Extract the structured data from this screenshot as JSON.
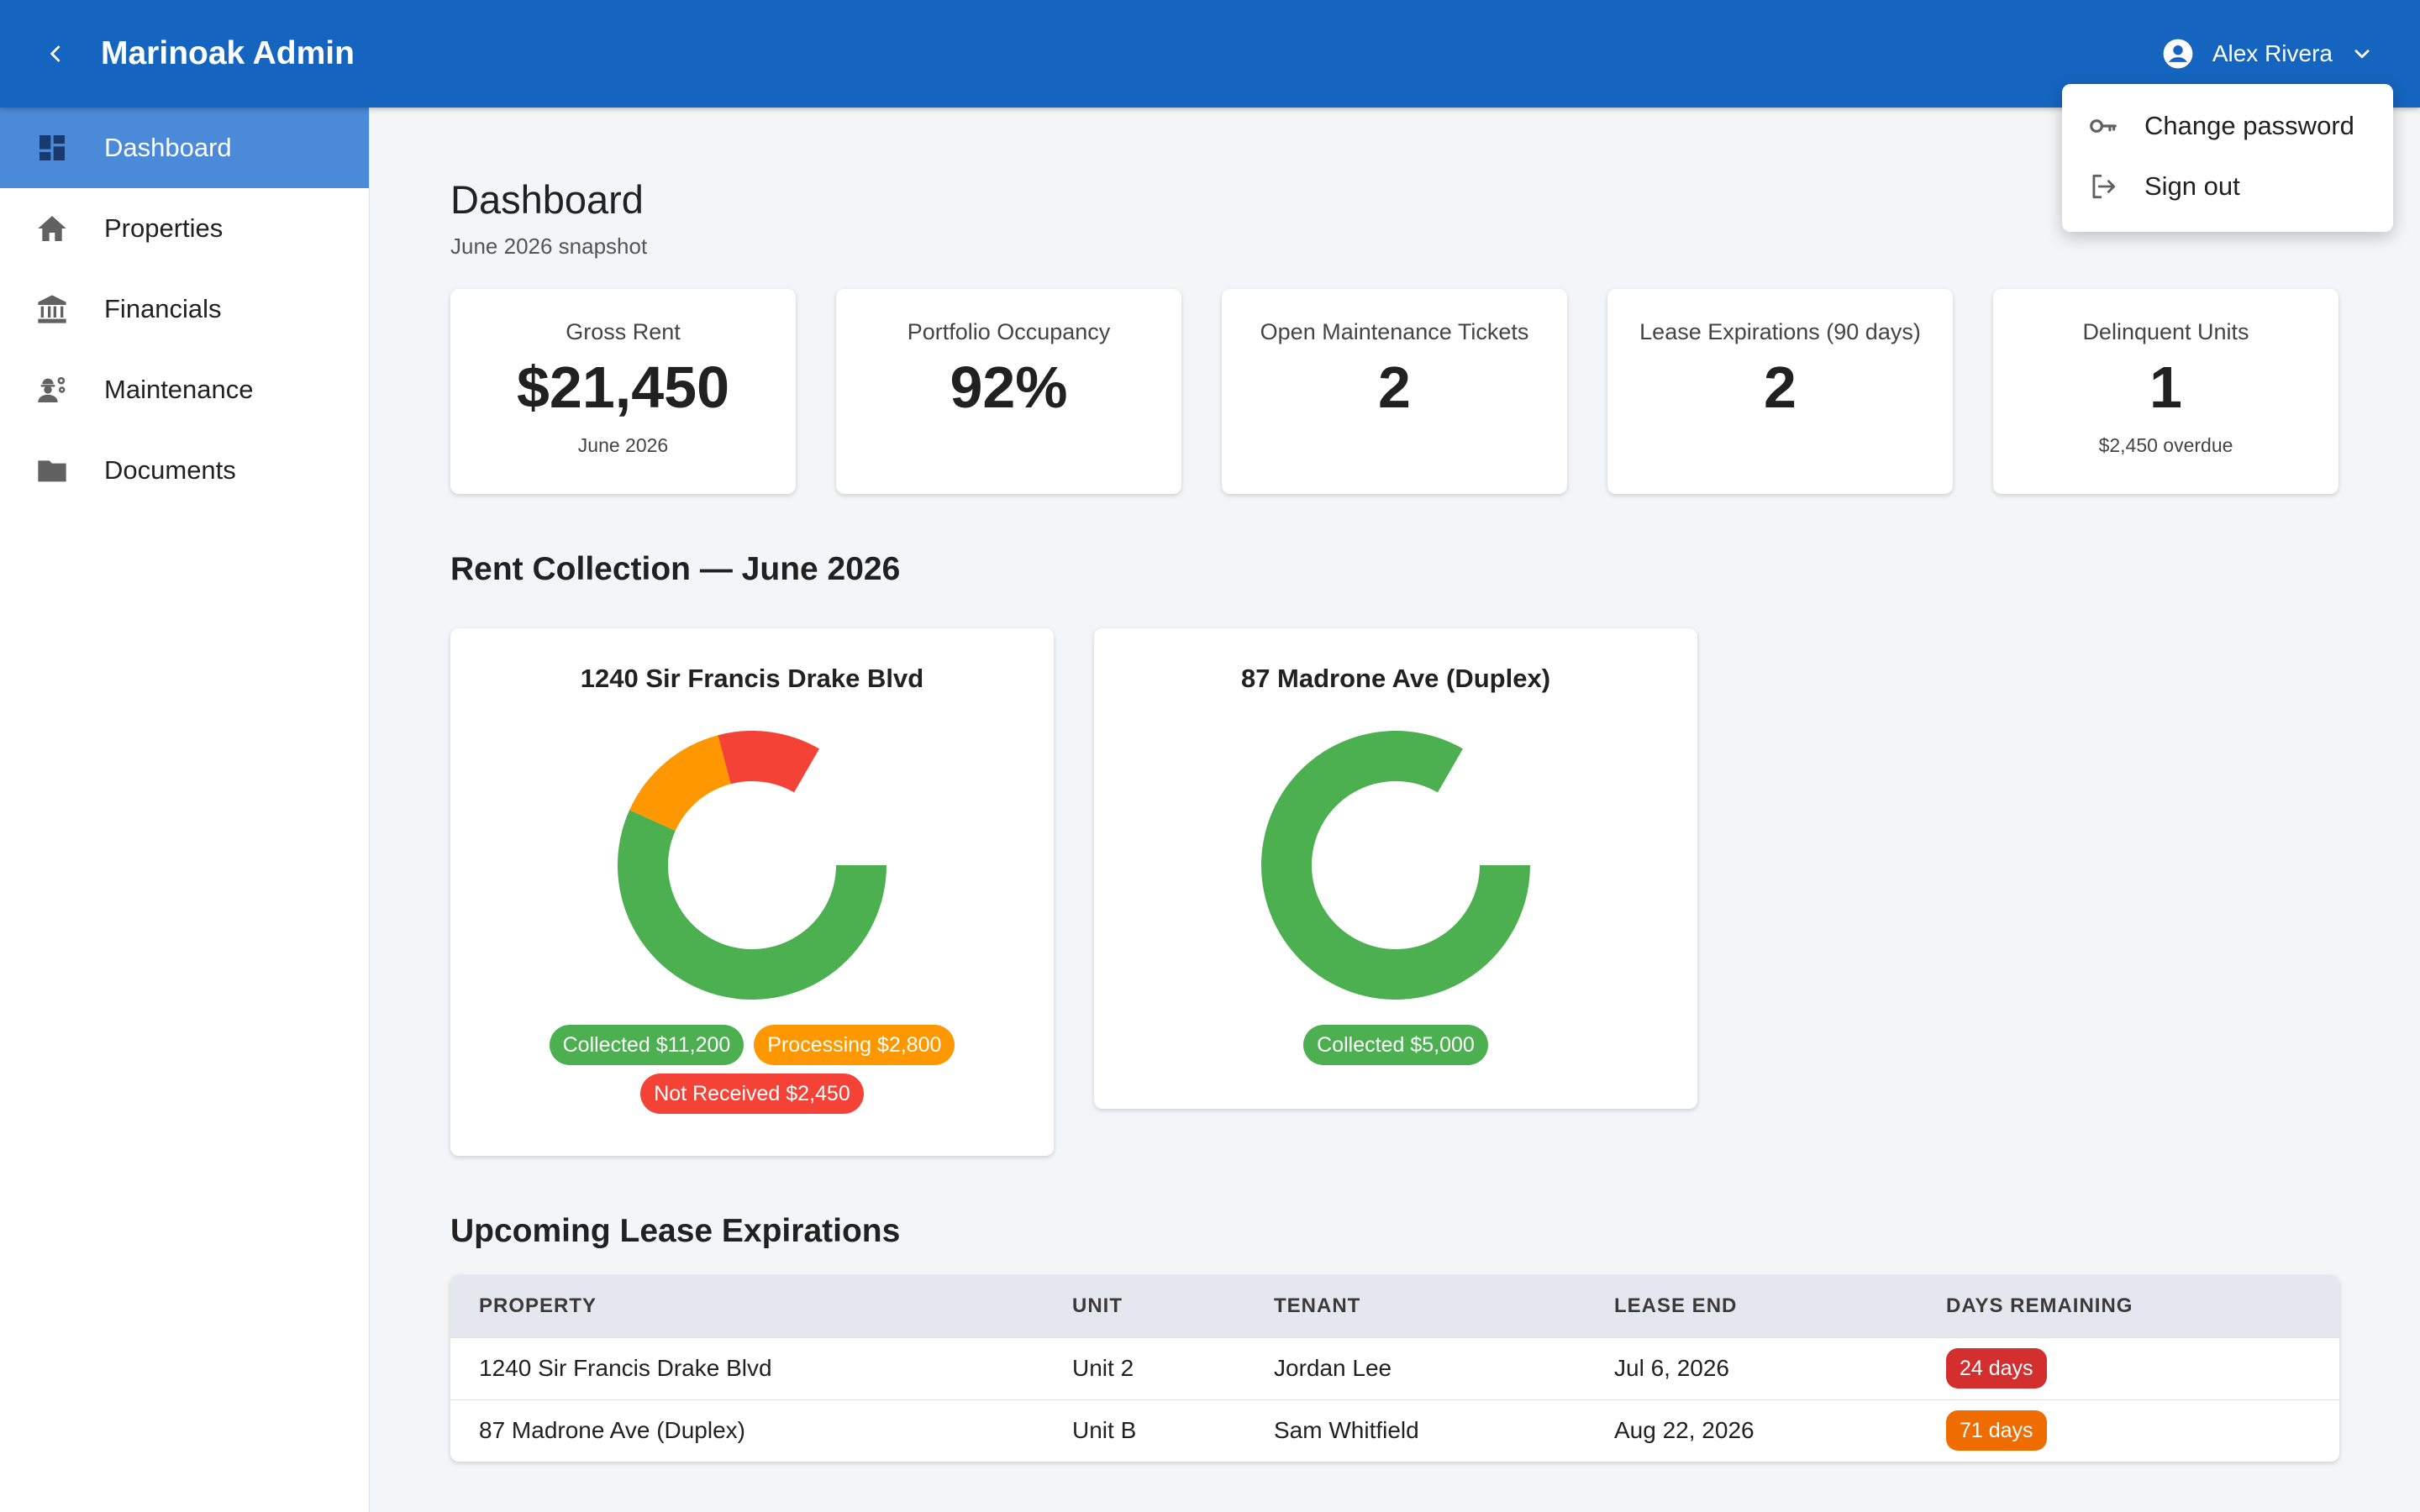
{
  "app": {
    "title": "Marinoak Admin"
  },
  "user": {
    "name": "Alex Rivera",
    "menu": [
      {
        "label": "Change password",
        "icon": "key-icon"
      },
      {
        "label": "Sign out",
        "icon": "sign-out-icon"
      }
    ]
  },
  "sidebar": {
    "items": [
      {
        "label": "Dashboard",
        "icon": "dashboard-icon",
        "active": true
      },
      {
        "label": "Properties",
        "icon": "home-icon"
      },
      {
        "label": "Financials",
        "icon": "bank-icon"
      },
      {
        "label": "Maintenance",
        "icon": "worker-icon"
      },
      {
        "label": "Documents",
        "icon": "folder-icon"
      }
    ]
  },
  "page": {
    "title": "Dashboard",
    "subtitle": "June 2026 snapshot"
  },
  "kpis": [
    {
      "label": "Gross Rent",
      "value": "$21,450",
      "note": "June 2026"
    },
    {
      "label": "Portfolio Occupancy",
      "value": "92%",
      "note": ""
    },
    {
      "label": "Open Maintenance Tickets",
      "value": "2",
      "note": ""
    },
    {
      "label": "Lease Expirations (90 days)",
      "value": "2",
      "note": ""
    },
    {
      "label": "Delinquent Units",
      "value": "1",
      "note": "$2,450 overdue"
    }
  ],
  "rent_collection": {
    "title": "Rent Collection — June 2026",
    "cards": [
      {
        "title": "1240 Sir Francis Drake Blvd",
        "chips": [
          "Collected $11,200",
          "Processing $2,800",
          "Not Received $2,450"
        ]
      },
      {
        "title": "87 Madrone Ave (Duplex)",
        "chips": [
          "Collected $5,000"
        ]
      }
    ]
  },
  "colors": {
    "collected": "#4caf50",
    "processing": "#ff9800",
    "not_received": "#f44336",
    "chip_urgent": "#d32f2f",
    "chip_warn": "#ef6c00",
    "primary": "#1565c0"
  },
  "chart_data": [
    {
      "type": "pie",
      "title": "1240 Sir Francis Drake Blvd",
      "categories": [
        "Collected",
        "Processing",
        "Not Received"
      ],
      "values": [
        11200,
        2800,
        2450
      ],
      "colors": [
        "#4caf50",
        "#ff9800",
        "#f44336"
      ]
    },
    {
      "type": "pie",
      "title": "87 Madrone Ave (Duplex)",
      "categories": [
        "Collected"
      ],
      "values": [
        5000
      ],
      "colors": [
        "#4caf50"
      ]
    }
  ],
  "leases": {
    "title": "Upcoming Lease Expirations",
    "columns": [
      "PROPERTY",
      "UNIT",
      "TENANT",
      "LEASE END",
      "DAYS REMAINING"
    ],
    "rows": [
      {
        "property": "1240 Sir Francis Drake Blvd",
        "unit": "Unit 2",
        "tenant": "Jordan Lee",
        "lease_end": "Jul 6, 2026",
        "days": "24 days",
        "days_color": "#d32f2f"
      },
      {
        "property": "87 Madrone Ave (Duplex)",
        "unit": "Unit B",
        "tenant": "Sam Whitfield",
        "lease_end": "Aug 22, 2026",
        "days": "71 days",
        "days_color": "#ef6c00"
      }
    ]
  }
}
